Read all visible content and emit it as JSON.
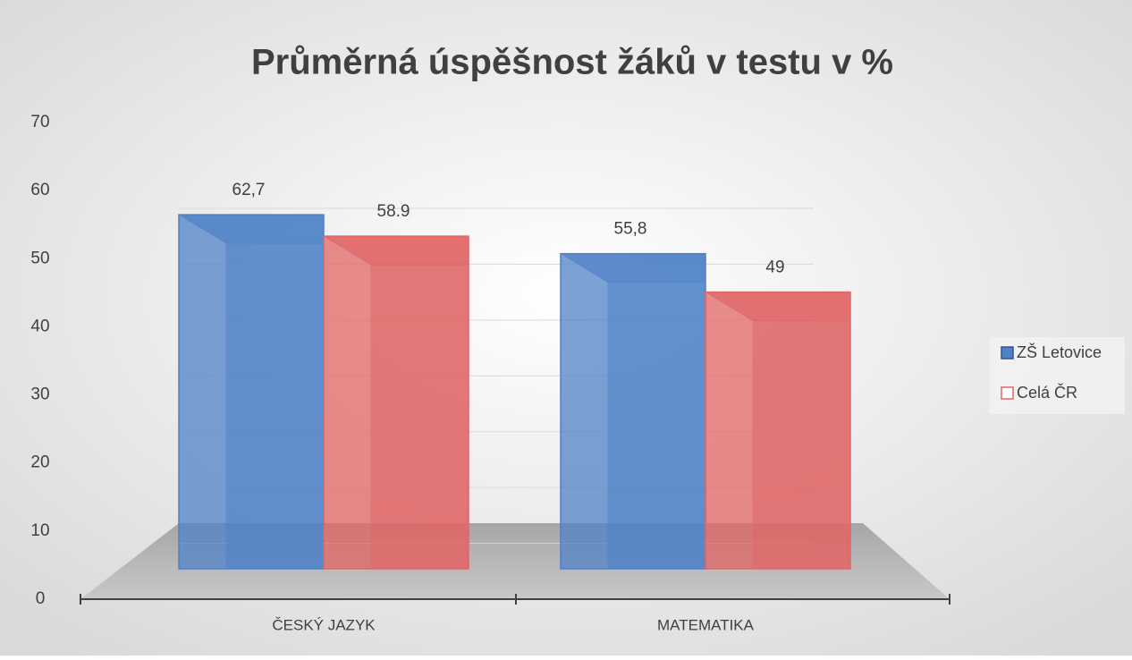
{
  "chart_data": {
    "type": "bar3d",
    "title": "Průměrná úspěšnost žáků v testu v %",
    "categories": [
      "ČESKÝ JAZYK",
      "MATEMATIKA"
    ],
    "series": [
      {
        "name": "ZŠ Letovice",
        "color": "#4f81c7",
        "values": [
          62.7,
          55.8
        ],
        "value_labels": [
          "62,7",
          "55,8"
        ]
      },
      {
        "name": "Celá ČR",
        "color": "#e06666",
        "values": [
          58.9,
          49
        ]
      }
    ],
    "ylim": [
      0,
      70
    ],
    "yticks": [
      0,
      10,
      20,
      30,
      40,
      50,
      60,
      70
    ],
    "grid": true,
    "legend": "right"
  }
}
